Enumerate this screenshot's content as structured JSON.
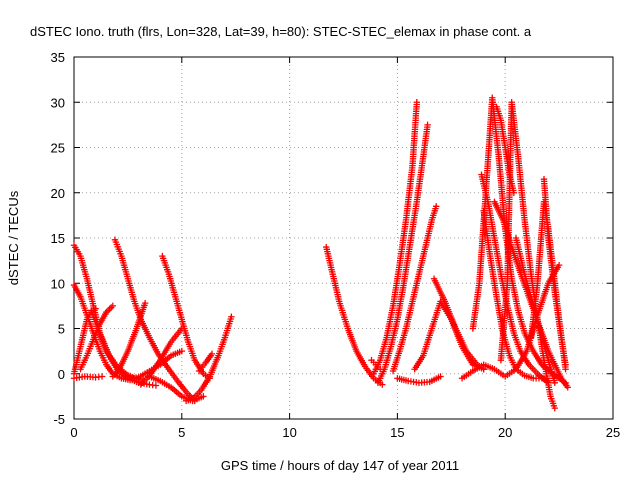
{
  "chart_data": {
    "type": "scatter",
    "title": "dSTEC Iono. truth (flrs, Lon=328, Lat=39, h=80): STEC-STEC_elemax in phase cont. a",
    "xlabel": "GPS time / hours of day 147 of year 2011",
    "ylabel": "dSTEC  / TECUs",
    "xlim": [
      0,
      25
    ],
    "ylim": [
      -5,
      35
    ],
    "xticks": [
      "0",
      "5",
      "10",
      "15",
      "20",
      "25"
    ],
    "yticks": [
      "-5",
      "0",
      "5",
      "10",
      "15",
      "20",
      "25",
      "30",
      "35"
    ],
    "grid": true,
    "marker": "+",
    "color": "#ff0000",
    "series": [
      {
        "x": [
          0.0,
          0.3,
          0.6,
          0.9,
          1.2,
          1.6,
          2.0,
          2.4,
          2.8,
          3.2
        ],
        "y": [
          14.2,
          13.0,
          10.5,
          7.5,
          4.5,
          2.2,
          0.8,
          0.0,
          -0.5,
          -0.6
        ]
      },
      {
        "x": [
          0.0,
          0.3,
          0.6,
          0.9,
          1.2,
          1.5,
          1.8,
          2.2,
          2.6
        ],
        "y": [
          9.8,
          8.5,
          6.5,
          4.5,
          2.5,
          1.0,
          0.0,
          -0.5,
          -0.7
        ]
      },
      {
        "x": [
          0.0,
          0.2,
          0.4,
          0.6,
          0.8,
          1.0
        ],
        "y": [
          0.0,
          2.0,
          4.0,
          6.0,
          6.8,
          7.2
        ]
      },
      {
        "x": [
          0.3,
          0.6,
          0.9,
          1.2,
          1.5,
          1.8
        ],
        "y": [
          0.5,
          2.0,
          3.8,
          5.5,
          6.8,
          7.5
        ]
      },
      {
        "x": [
          0.0,
          0.5,
          1.0,
          1.3
        ],
        "y": [
          -0.5,
          -0.3,
          -0.4,
          -0.3
        ]
      },
      {
        "x": [
          0.8,
          1.1,
          1.5,
          2.0,
          2.5,
          3.0,
          3.5,
          3.8
        ],
        "y": [
          7.0,
          5.0,
          2.5,
          0.5,
          -0.5,
          -1.0,
          -1.2,
          -1.3
        ]
      },
      {
        "x": [
          1.9,
          2.2,
          2.5,
          2.8,
          3.1,
          3.5,
          3.9,
          4.4,
          4.8,
          5.2,
          5.6
        ],
        "y": [
          14.8,
          13.0,
          10.5,
          8.0,
          6.0,
          4.0,
          2.2,
          0.5,
          -0.8,
          -2.0,
          -3.0
        ]
      },
      {
        "x": [
          1.8,
          2.1,
          2.5,
          2.9,
          3.3
        ],
        "y": [
          -0.3,
          0.5,
          2.5,
          5.0,
          7.8
        ]
      },
      {
        "x": [
          2.5,
          3.0,
          3.5,
          4.0,
          4.5,
          5.0
        ],
        "y": [
          -0.5,
          -0.4,
          0.3,
          1.0,
          2.0,
          2.5
        ]
      },
      {
        "x": [
          4.1,
          4.4,
          4.7,
          5.0,
          5.3,
          5.6,
          6.0,
          6.3
        ],
        "y": [
          13.0,
          11.0,
          8.5,
          6.0,
          3.5,
          1.5,
          0.0,
          -0.5
        ]
      },
      {
        "x": [
          3.1,
          3.5,
          4.0,
          4.5,
          5.0
        ],
        "y": [
          -1.2,
          -0.2,
          1.5,
          3.5,
          5.0
        ]
      },
      {
        "x": [
          3.5,
          4.0,
          4.5,
          5.0,
          5.5,
          6.0
        ],
        "y": [
          -0.3,
          -0.8,
          -1.5,
          -2.5,
          -3.0,
          -2.5
        ]
      },
      {
        "x": [
          5.2,
          5.5,
          5.9,
          6.3,
          6.7,
          7.0,
          7.3
        ],
        "y": [
          -3.0,
          -2.8,
          -1.8,
          -0.3,
          2.0,
          4.0,
          6.3
        ]
      },
      {
        "x": [
          5.8,
          6.1,
          6.4
        ],
        "y": [
          0.3,
          1.2,
          2.2
        ]
      },
      {
        "x": [
          11.7,
          12.0,
          12.3,
          12.7,
          13.1,
          13.5,
          13.9,
          14.3
        ],
        "y": [
          14.0,
          11.0,
          8.0,
          5.0,
          2.5,
          0.8,
          -0.5,
          -1.2
        ]
      },
      {
        "x": [
          13.8,
          14.0,
          14.2
        ],
        "y": [
          1.5,
          1.0,
          0.5
        ]
      },
      {
        "x": [
          13.9,
          14.2,
          14.5,
          14.8,
          15.1,
          15.4,
          15.7,
          15.9
        ],
        "y": [
          0.0,
          1.5,
          4.0,
          7.5,
          12.0,
          17.0,
          23.0,
          30.0
        ]
      },
      {
        "x": [
          14.1,
          14.4,
          14.7,
          15.0,
          15.3,
          15.6,
          15.9,
          16.2,
          16.4
        ],
        "y": [
          -1.0,
          0.5,
          3.0,
          6.0,
          10.0,
          14.5,
          19.0,
          24.0,
          27.5
        ]
      },
      {
        "x": [
          14.8,
          15.1,
          15.4,
          15.7,
          16.0,
          16.3,
          16.6,
          16.8
        ],
        "y": [
          0.3,
          2.5,
          5.0,
          8.0,
          11.0,
          14.0,
          17.0,
          18.5
        ]
      },
      {
        "x": [
          15.0,
          15.5,
          16.0,
          16.5,
          17.0
        ],
        "y": [
          -0.5,
          -0.8,
          -1.0,
          -0.9,
          -0.3
        ]
      },
      {
        "x": [
          15.8,
          16.2,
          16.6,
          17.0,
          17.5,
          18.0,
          18.5,
          19.0
        ],
        "y": [
          0.5,
          2.0,
          5.0,
          8.0,
          6.0,
          3.0,
          1.0,
          0.5
        ]
      },
      {
        "x": [
          16.7,
          17.2,
          17.7,
          18.2,
          18.7,
          19.0
        ],
        "y": [
          10.5,
          8.0,
          5.0,
          2.5,
          1.0,
          0.5
        ]
      },
      {
        "x": [
          18.0,
          18.5,
          19.0,
          19.5,
          20.0,
          20.5,
          21.0,
          21.5,
          22.0,
          22.5
        ],
        "y": [
          -0.5,
          0.3,
          1.0,
          0.5,
          -0.3,
          0.5,
          2.5,
          6.5,
          10.0,
          12.0
        ]
      },
      {
        "x": [
          18.5,
          18.8,
          19.1,
          19.4,
          19.7,
          20.0,
          20.3,
          20.6,
          20.9,
          21.3,
          21.7,
          22.2,
          22.8
        ],
        "y": [
          5.0,
          10.0,
          20.0,
          30.5,
          24.0,
          16.0,
          10.5,
          7.0,
          4.5,
          2.5,
          1.0,
          0.0,
          -1.0
        ]
      },
      {
        "x": [
          18.9,
          19.2,
          19.5,
          19.8,
          20.1,
          20.4,
          20.7,
          21.1,
          21.5,
          22.0
        ],
        "y": [
          22.0,
          19.0,
          15.0,
          11.0,
          7.5,
          4.5,
          2.5,
          1.0,
          0.0,
          -1.0
        ]
      },
      {
        "x": [
          19.0,
          19.3,
          19.6,
          19.9,
          20.2,
          20.5,
          20.9,
          21.3,
          21.7,
          22.0
        ],
        "y": [
          18.0,
          13.0,
          8.5,
          4.5,
          2.0,
          0.5,
          -0.2,
          -0.5,
          -0.5,
          -0.8
        ]
      },
      {
        "x": [
          19.6,
          19.8,
          20.0,
          20.2,
          20.4
        ],
        "y": [
          29.5,
          28.0,
          25.0,
          22.0,
          20.0
        ]
      },
      {
        "x": [
          19.5,
          19.9,
          20.3,
          20.8,
          21.4,
          22.0,
          22.6,
          22.9
        ],
        "y": [
          19.0,
          17.0,
          14.0,
          10.5,
          6.5,
          2.5,
          -0.5,
          -1.5
        ]
      },
      {
        "x": [
          19.8,
          20.1,
          20.3,
          20.6,
          20.9,
          21.2,
          21.5,
          21.8,
          22.1,
          22.3
        ],
        "y": [
          1.5,
          10.0,
          30.0,
          24.0,
          17.0,
          11.0,
          6.0,
          1.5,
          -2.5,
          -3.8
        ]
      },
      {
        "x": [
          20.5,
          20.9,
          21.3,
          21.7,
          22.0,
          22.3
        ],
        "y": [
          15.0,
          11.0,
          7.5,
          4.0,
          1.5,
          -1.0
        ]
      },
      {
        "x": [
          21.2,
          21.5,
          21.8,
          22.0,
          22.2,
          22.5,
          22.8
        ],
        "y": [
          4.0,
          10.0,
          19.0,
          16.0,
          12.0,
          6.0,
          0.5
        ]
      },
      {
        "x": [
          21.8,
          22.0,
          22.3,
          22.6,
          22.8
        ],
        "y": [
          21.5,
          15.0,
          9.0,
          4.0,
          1.0
        ]
      }
    ]
  }
}
